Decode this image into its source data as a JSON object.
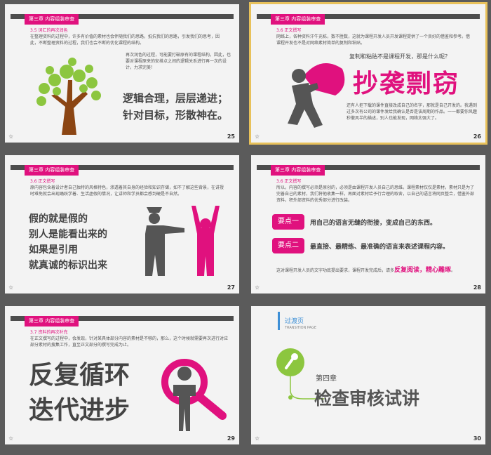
{
  "slides": [
    {
      "num": "25",
      "tag": "第三章 内容组装审查",
      "sub": "3.5 词汇的再次润色",
      "p1": "在整理资料的过程中，许多有价值的素材也会伴随我们的思路，抵抗我们的思路，引发我们的思考，因此，不断整理资料的过程，我们也会不断的优化课程的结构。",
      "p2": "再次润色的过程，可能要打破原有的课程结构，因此，也要对课程原来的安排点之间的逻辑关系进行再一次的设计，力求完美！",
      "big": "逻辑合理，层层递进；针对目标，形散神在。"
    },
    {
      "num": "26",
      "tag": "第三章 内容组装审查",
      "sub": "3.6 正文撰写",
      "p1": "网络上，各种资料汗牛充栋，数不胜数，这就为课程开发人员开发课程提供了一个良好的借鉴和参考。借课程开发也不是对网络素材简单的复制和粘贴。",
      "q": "复制和粘贴不是课程开发，那是什么呢？",
      "big": "抄袭剽窃",
      "p2": "还有人拒下载的课件直接改成自己的名字，那就是自己开发的。我遇到过多次有公司的课件发给我确认是否是该周期的作品。一一都要你风趣秒撤风半的描述，别人也能发现，网络太强大了。"
    },
    {
      "num": "27",
      "tag": "第三章 内容组装审查",
      "sub": "3.6 正文撰写",
      "p1": "原内容包含着设计者自己独特的风格特色，渗透着其自身的经验和知识存储，如不了解这些背景，在讲授时难免就会出现踊跃学着、生活虚假的情况，让讲师和学员都会感到硬是不自然。",
      "big": [
        "假的就是假的",
        "别人是能看出来的",
        "如果是引用",
        "就真诚的标识出来"
      ]
    },
    {
      "num": "28",
      "tag": "第三章 内容组装审查",
      "sub": "3.6 正文撰写",
      "p1": "所以，内容的撰写必须是原创的，必须是由课程开发人员自己的思维。课程素材仅仅是素材，素材只是为了完善自己的素材，我们将他收集一样，再面对素材给予行合理的取舍，以自己的语言将网页整合，借鉴外部资料，积外部资料的优秀部分进行改装。",
      "k1": "要点一",
      "t1": "用自己的语言无缝的衔接，变成自己的东西。",
      "k2": "要点二",
      "t2": "最直接、最精练、最准确的语言来表述课程内容。",
      "foot_a": "这对课程开发人员的文字功底提出要求，课程开发完成后，请多",
      "foot_b": "反复阅读，精心雕琢",
      "foot_c": "。"
    },
    {
      "num": "29",
      "tag": "第三章 内容组装审查",
      "sub": "3.7 资料的再次补充",
      "p1": "在正文撰写的过程中，会发现，针对某具体部分内容的素材是不够的，那么，这个时候就需要再次进行对应部分素材的搜集工作，直至正文部分的撰写完成为止。",
      "big": [
        "反复循环",
        "迭代进步"
      ]
    },
    {
      "num": "30",
      "hd": "过渡页",
      "hd_sub": "TRANSITION PAGE",
      "chapter": "第四章",
      "title": "检查审核试讲"
    }
  ],
  "colors": {
    "accent": "#e0117e",
    "bg": "#5b5b5b",
    "slide": "#f3f3f3",
    "green": "#8cc63f",
    "dark": "#555555"
  }
}
